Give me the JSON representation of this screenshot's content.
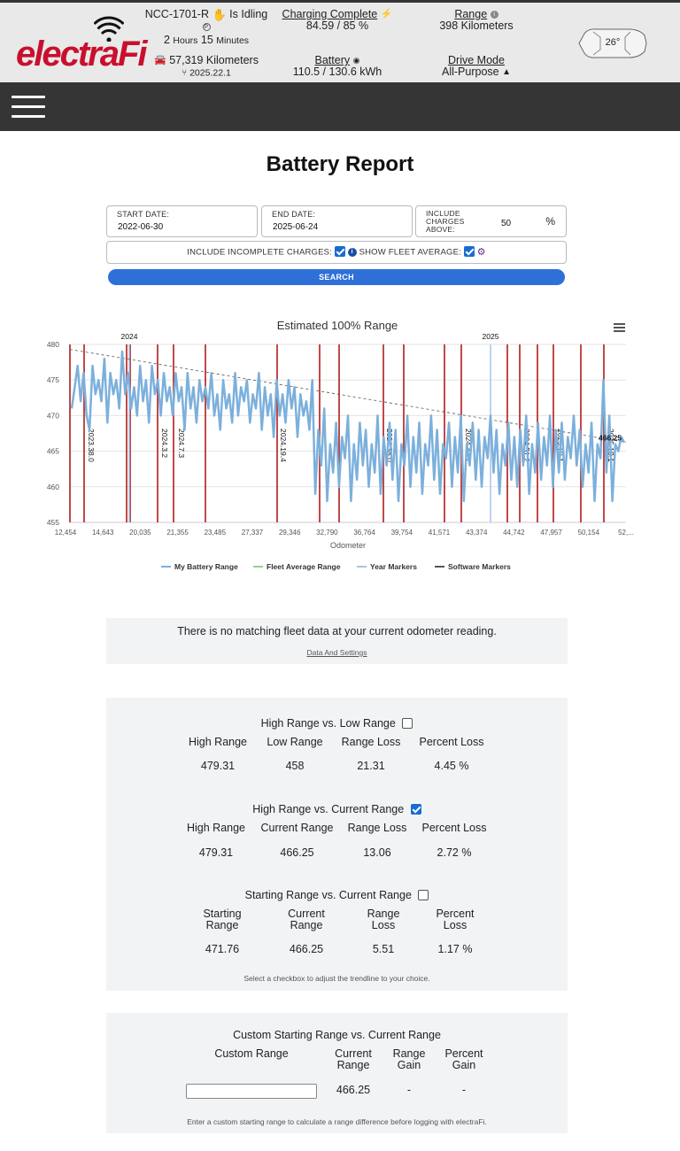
{
  "header": {
    "logo_text": "electraFi",
    "vehicle_name": "NCC-1701-R",
    "vehicle_state": "Is Idling",
    "state_duration": {
      "hours_value": "2",
      "hours_unit": "Hours",
      "minutes_value": "15",
      "minutes_unit": "Minutes"
    },
    "odometer": "57,319 Kilometers",
    "software_version": "2025.22.1",
    "charging_label": "Charging Complete",
    "charging_value": "84.59 / 85 %",
    "battery_label": "Battery",
    "battery_value": "110.5 / 130.6 kWh",
    "range_label": "Range",
    "range_value": "398 Kilometers",
    "drive_mode_label": "Drive Mode",
    "drive_mode_value": "All-Purpose",
    "temperature": "26°",
    "colors": {
      "brand_red": "#c8102e",
      "charging_green": "#2e9d3a",
      "nav_bg": "#353535"
    }
  },
  "page_title": "Battery Report",
  "form": {
    "start_date_label": "START DATE:",
    "start_date": "2022-06-30",
    "end_date_label": "END DATE:",
    "end_date": "2025-06-24",
    "include_above_label_1": "INCLUDE",
    "include_above_label_2": "CHARGES",
    "include_above_label_3": "ABOVE:",
    "include_above_value": "50",
    "include_above_unit": "%",
    "incomplete_label": "INCLUDE INCOMPLETE CHARGES:",
    "incomplete_checked": true,
    "fleet_avg_label": "SHOW FLEET AVERAGE:",
    "fleet_avg_checked": true,
    "search_label": "SEARCH"
  },
  "chart_data": {
    "type": "line",
    "title": "Estimated 100% Range",
    "xlabel": "Odometer",
    "ylabel": "",
    "ylim": [
      455,
      480
    ],
    "yticks": [
      455,
      460,
      465,
      470,
      475,
      480
    ],
    "xtick_labels": [
      "12,454",
      "14,643",
      "20,035",
      "21,355",
      "23,485",
      "27,337",
      "29,346",
      "32,790",
      "36,764",
      "39,754",
      "41,571",
      "43,374",
      "44,742",
      "47,957",
      "50,154",
      "52,..."
    ],
    "year_markers": [
      "2024",
      "2025"
    ],
    "software_markers": [
      "2023.38.0",
      "2024.3.2",
      "2024.7.3",
      "2024.19.4",
      "2024.35.0",
      "2024.47.1",
      "2024.51.2",
      "2025.10.1",
      "2025.18.1"
    ],
    "last_value_label": "466.25",
    "trend_start": 479.3,
    "trend_end": 466.25,
    "grid": true,
    "legend_position": "bottom",
    "series": [
      {
        "name": "My Battery Range",
        "color": "#7cb0dc",
        "values": [
          471,
          474,
          477,
          472,
          476,
          470,
          468,
          477,
          473,
          475,
          472,
          478,
          469,
          476,
          473,
          475,
          471,
          479,
          473,
          476,
          471,
          474,
          470,
          477,
          472,
          475,
          469,
          477,
          473,
          475,
          470,
          476,
          472,
          474,
          470,
          476,
          472,
          474,
          468,
          476,
          471,
          474,
          469,
          475,
          472,
          474,
          471,
          476,
          470,
          473,
          468,
          475,
          471,
          473,
          469,
          476,
          470,
          474,
          472,
          475,
          469,
          473,
          471,
          476,
          468,
          474,
          470,
          473,
          467,
          475,
          470,
          473,
          469,
          475,
          471,
          474,
          467,
          473,
          470,
          472,
          468,
          475,
          459,
          468,
          463,
          471,
          458,
          466,
          462,
          469,
          460,
          467,
          464,
          470,
          458,
          466,
          461,
          469,
          463,
          468,
          460,
          466,
          462,
          470,
          459,
          467,
          463,
          469,
          461,
          468,
          458,
          466,
          463,
          470,
          460,
          467,
          462,
          469,
          459,
          466,
          463,
          470,
          461,
          468,
          459,
          466,
          464,
          469,
          460,
          467,
          462,
          470,
          458,
          466,
          463,
          469,
          461,
          468,
          460,
          467,
          464,
          470,
          462,
          468,
          459,
          466,
          463,
          469,
          461,
          467,
          460,
          468,
          463,
          470,
          459,
          466,
          462,
          469,
          461,
          467,
          463,
          470,
          460,
          468,
          462,
          469,
          461,
          467,
          464,
          470,
          463,
          468,
          460,
          466,
          462,
          469,
          458,
          466,
          464,
          475,
          462,
          470,
          458,
          466,
          465,
          467,
          466.25
        ]
      },
      {
        "name": "Fleet Average Range",
        "color": "#8fd68f",
        "values": []
      },
      {
        "name": "Year Markers",
        "color": "#a9c4e8",
        "values": []
      },
      {
        "name": "Software Markers",
        "color": "#555555",
        "values": []
      }
    ]
  },
  "fleet_notice": {
    "text": "There is no matching fleet data at your current odometer reading.",
    "link": "Data And Settings"
  },
  "comparisons": [
    {
      "title": "High Range vs. Low Range",
      "checked": false,
      "headers": [
        "High Range",
        "Low Range",
        "Range Loss",
        "Percent Loss"
      ],
      "values": [
        "479.31",
        "458",
        "21.31",
        "4.45 %"
      ]
    },
    {
      "title": "High Range vs. Current Range",
      "checked": true,
      "headers": [
        "High Range",
        "Current Range",
        "Range Loss",
        "Percent Loss"
      ],
      "values": [
        "479.31",
        "466.25",
        "13.06",
        "2.72 %"
      ]
    },
    {
      "title": "Starting Range vs. Current Range",
      "checked": false,
      "headers": [
        "Starting\nRange",
        "Current\nRange",
        "Range\nLoss",
        "Percent\nLoss"
      ],
      "values": [
        "471.76",
        "466.25",
        "5.51",
        "1.17 %"
      ]
    }
  ],
  "comparison_hint": "Select a checkbox to adjust the trendline to your choice.",
  "custom": {
    "title": "Custom Starting Range vs. Current Range",
    "headers": [
      "Custom Range",
      "Current\nRange",
      "Range\nGain",
      "Percent\nGain"
    ],
    "input_value": "",
    "current_value": "466.25",
    "gain_value": "-",
    "percent_value": "-",
    "hint": "Enter a custom starting range to calculate a range difference before logging with electraFi."
  }
}
